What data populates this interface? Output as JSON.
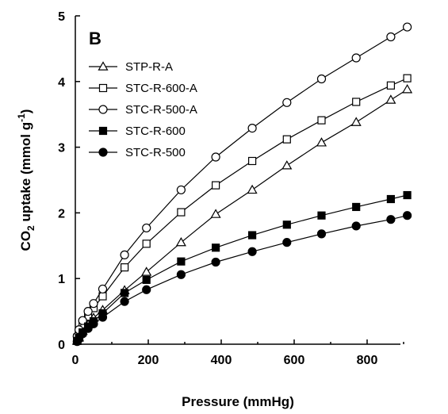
{
  "chart_data": {
    "type": "scatter",
    "panel_label": "B",
    "xlabel": "Pressure (mmHg)",
    "ylabel": {
      "prefix": "CO",
      "sub": "2",
      "middle": " uptake (mmol g",
      "sup": "-1",
      "suffix": ")"
    },
    "xlim": [
      0,
      950
    ],
    "ylim": [
      0,
      5
    ],
    "xticks": [
      0,
      200,
      400,
      600,
      800
    ],
    "yticks": [
      0,
      1,
      2,
      3,
      4,
      5
    ],
    "grid": false,
    "legend_position": "top-left",
    "series": [
      {
        "name": "STP-R-A",
        "marker": "triangle-open",
        "x": [
          5,
          10,
          20,
          35,
          50,
          75,
          135,
          195,
          290,
          385,
          485,
          580,
          675,
          770,
          865,
          910
        ],
        "y": [
          0.05,
          0.1,
          0.2,
          0.3,
          0.4,
          0.52,
          0.82,
          1.1,
          1.55,
          1.98,
          2.35,
          2.72,
          3.07,
          3.38,
          3.72,
          3.88
        ]
      },
      {
        "name": "STC-R-600-A",
        "marker": "square-open",
        "x": [
          5,
          10,
          20,
          35,
          50,
          75,
          135,
          195,
          290,
          385,
          485,
          580,
          675,
          770,
          865,
          910
        ],
        "y": [
          0.1,
          0.18,
          0.3,
          0.42,
          0.55,
          0.73,
          1.17,
          1.53,
          2.01,
          2.42,
          2.79,
          3.12,
          3.41,
          3.69,
          3.94,
          4.05
        ]
      },
      {
        "name": "STC-R-500-A",
        "marker": "circle-open",
        "x": [
          5,
          10,
          20,
          35,
          50,
          75,
          135,
          195,
          290,
          385,
          485,
          580,
          675,
          770,
          865,
          910
        ],
        "y": [
          0.12,
          0.22,
          0.36,
          0.5,
          0.62,
          0.84,
          1.36,
          1.77,
          2.35,
          2.85,
          3.29,
          3.68,
          4.04,
          4.36,
          4.68,
          4.83
        ]
      },
      {
        "name": "STC-R-600",
        "marker": "square-filled",
        "x": [
          5,
          10,
          20,
          35,
          50,
          75,
          135,
          195,
          290,
          385,
          485,
          580,
          675,
          770,
          865,
          910
        ],
        "y": [
          0.05,
          0.1,
          0.18,
          0.27,
          0.35,
          0.47,
          0.78,
          0.98,
          1.26,
          1.47,
          1.66,
          1.82,
          1.96,
          2.09,
          2.21,
          2.27
        ]
      },
      {
        "name": "STC-R-500",
        "marker": "circle-filled",
        "x": [
          5,
          10,
          20,
          35,
          50,
          75,
          135,
          195,
          290,
          385,
          485,
          580,
          675,
          770,
          865,
          910
        ],
        "y": [
          0.04,
          0.08,
          0.16,
          0.24,
          0.31,
          0.41,
          0.65,
          0.83,
          1.06,
          1.25,
          1.41,
          1.55,
          1.68,
          1.8,
          1.9,
          1.96
        ]
      }
    ]
  }
}
